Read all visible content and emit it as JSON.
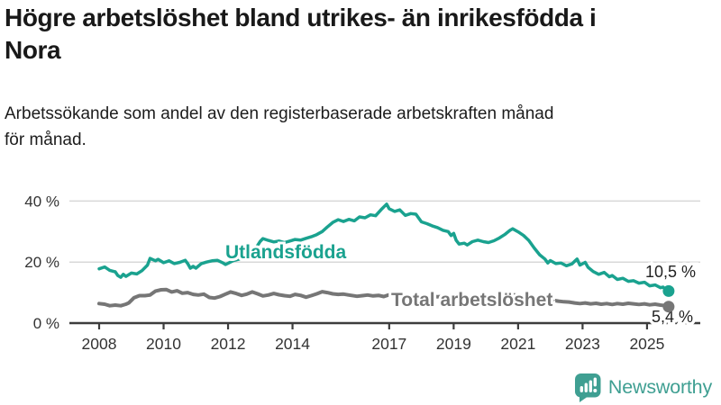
{
  "header": {
    "title_line1": "Högre arbetslöshet bland utrikes- än inrikesfödda i",
    "title_line2": "Nora",
    "subtitle_line1": "Arbetssökande som andel av den registerbaserade arbetskraften månad",
    "subtitle_line2": "för månad."
  },
  "footer": {
    "brand": "Newsworthy",
    "logo_icon": "bar-chart-speech-bubble-icon"
  },
  "colors": {
    "accent_teal": "#1aa28f",
    "series_gray": "#767676",
    "gridline": "#d8d8d8",
    "axis": "#3d3d3d",
    "axis_text": "#333333",
    "end_label_text": "#222222",
    "logo_teal": "#3f9f92",
    "title_text": "#191919"
  },
  "chart_data": {
    "type": "line",
    "title": "Högre arbetslöshet bland utrikes- än inrikesfödda i Nora",
    "subtitle": "Arbetssökande som andel av den registerbaserade arbetskraften månad för månad.",
    "xlabel": "",
    "ylabel": "",
    "grid": "horizontal",
    "legend_position": "inline-labels",
    "xlim": [
      2007.9,
      2025.85
    ],
    "ylim": [
      0,
      43
    ],
    "x_axis": {
      "ticks": [
        {
          "value": 2008,
          "label": "2008"
        },
        {
          "value": 2010,
          "label": "2010"
        },
        {
          "value": 2012,
          "label": "2012"
        },
        {
          "value": 2014,
          "label": "2014"
        },
        {
          "value": 2017,
          "label": "2017"
        },
        {
          "value": 2019,
          "label": "2019"
        },
        {
          "value": 2021,
          "label": "2021"
        },
        {
          "value": 2023,
          "label": "2023"
        },
        {
          "value": 2025,
          "label": "2025"
        }
      ]
    },
    "y_axis": {
      "ticks": [
        {
          "value": 0,
          "label": "0 %"
        },
        {
          "value": 20,
          "label": "20 %"
        },
        {
          "value": 40,
          "label": "40 %"
        }
      ]
    },
    "series": [
      {
        "id": "utlandsfodda",
        "name": "Utlandsfödda",
        "color": "#1aa28f",
        "end_label": "10,5 %",
        "end_value": 10.5,
        "points": [
          [
            2008.0,
            17.8
          ],
          [
            2008.17,
            18.4
          ],
          [
            2008.33,
            17.3
          ],
          [
            2008.5,
            16.8
          ],
          [
            2008.58,
            15.6
          ],
          [
            2008.67,
            15.0
          ],
          [
            2008.75,
            16.0
          ],
          [
            2008.83,
            15.3
          ],
          [
            2009.0,
            16.4
          ],
          [
            2009.17,
            16.1
          ],
          [
            2009.33,
            17.2
          ],
          [
            2009.5,
            19.0
          ],
          [
            2009.58,
            21.2
          ],
          [
            2009.75,
            20.4
          ],
          [
            2009.83,
            20.9
          ],
          [
            2010.0,
            19.8
          ],
          [
            2010.17,
            20.4
          ],
          [
            2010.33,
            19.5
          ],
          [
            2010.5,
            19.9
          ],
          [
            2010.67,
            20.6
          ],
          [
            2010.75,
            19.5
          ],
          [
            2010.83,
            18.0
          ],
          [
            2010.92,
            18.6
          ],
          [
            2011.0,
            18.0
          ],
          [
            2011.17,
            19.5
          ],
          [
            2011.33,
            20.0
          ],
          [
            2011.5,
            20.4
          ],
          [
            2011.67,
            20.6
          ],
          [
            2011.83,
            19.8
          ],
          [
            2011.92,
            19.2
          ],
          [
            2012.0,
            19.6
          ],
          [
            2012.17,
            20.5
          ],
          [
            2012.33,
            20.9
          ],
          [
            2012.5,
            21.3
          ],
          [
            2012.67,
            22.0
          ],
          [
            2012.83,
            24.0
          ],
          [
            2013.0,
            26.8
          ],
          [
            2013.08,
            27.7
          ],
          [
            2013.25,
            27.1
          ],
          [
            2013.42,
            26.6
          ],
          [
            2013.58,
            26.9
          ],
          [
            2013.75,
            26.4
          ],
          [
            2013.92,
            26.9
          ],
          [
            2014.08,
            27.4
          ],
          [
            2014.25,
            27.2
          ],
          [
            2014.42,
            27.8
          ],
          [
            2014.58,
            28.3
          ],
          [
            2014.75,
            29.0
          ],
          [
            2014.92,
            30.0
          ],
          [
            2015.08,
            31.5
          ],
          [
            2015.25,
            33.0
          ],
          [
            2015.42,
            33.9
          ],
          [
            2015.58,
            33.3
          ],
          [
            2015.75,
            34.0
          ],
          [
            2015.92,
            33.5
          ],
          [
            2016.08,
            34.8
          ],
          [
            2016.25,
            34.5
          ],
          [
            2016.42,
            35.5
          ],
          [
            2016.58,
            35.2
          ],
          [
            2016.75,
            37.2
          ],
          [
            2016.92,
            39.0
          ],
          [
            2017.0,
            37.5
          ],
          [
            2017.17,
            36.6
          ],
          [
            2017.33,
            37.1
          ],
          [
            2017.5,
            35.3
          ],
          [
            2017.67,
            35.9
          ],
          [
            2017.83,
            35.7
          ],
          [
            2018.0,
            33.2
          ],
          [
            2018.17,
            32.6
          ],
          [
            2018.33,
            31.9
          ],
          [
            2018.5,
            31.3
          ],
          [
            2018.67,
            30.4
          ],
          [
            2018.83,
            30.0
          ],
          [
            2018.92,
            28.7
          ],
          [
            2019.0,
            29.4
          ],
          [
            2019.08,
            27.1
          ],
          [
            2019.17,
            25.9
          ],
          [
            2019.33,
            26.2
          ],
          [
            2019.42,
            25.6
          ],
          [
            2019.58,
            26.7
          ],
          [
            2019.75,
            27.2
          ],
          [
            2019.92,
            26.7
          ],
          [
            2020.08,
            26.4
          ],
          [
            2020.25,
            27.0
          ],
          [
            2020.42,
            27.9
          ],
          [
            2020.58,
            29.0
          ],
          [
            2020.75,
            30.4
          ],
          [
            2020.83,
            30.9
          ],
          [
            2021.0,
            29.9
          ],
          [
            2021.17,
            28.7
          ],
          [
            2021.33,
            27.1
          ],
          [
            2021.5,
            24.6
          ],
          [
            2021.67,
            22.4
          ],
          [
            2021.83,
            21.0
          ],
          [
            2021.92,
            19.7
          ],
          [
            2022.0,
            20.5
          ],
          [
            2022.17,
            19.5
          ],
          [
            2022.33,
            19.7
          ],
          [
            2022.5,
            18.8
          ],
          [
            2022.67,
            19.4
          ],
          [
            2022.83,
            21.0
          ],
          [
            2022.92,
            19.0
          ],
          [
            2023.08,
            19.9
          ],
          [
            2023.17,
            18.3
          ],
          [
            2023.33,
            16.9
          ],
          [
            2023.5,
            16.0
          ],
          [
            2023.67,
            16.6
          ],
          [
            2023.83,
            15.2
          ],
          [
            2023.92,
            15.6
          ],
          [
            2024.08,
            14.3
          ],
          [
            2024.25,
            14.7
          ],
          [
            2024.42,
            13.7
          ],
          [
            2024.58,
            13.9
          ],
          [
            2024.75,
            13.1
          ],
          [
            2024.92,
            13.4
          ],
          [
            2025.08,
            12.2
          ],
          [
            2025.25,
            12.5
          ],
          [
            2025.42,
            11.6
          ],
          [
            2025.5,
            11.8
          ],
          [
            2025.58,
            10.9
          ],
          [
            2025.67,
            10.5
          ]
        ]
      },
      {
        "id": "total-arbetsloshet",
        "name": "Total arbetslöshet",
        "color": "#767676",
        "end_label": "5,4 %",
        "end_value": 5.4,
        "points": [
          [
            2008.0,
            6.4
          ],
          [
            2008.17,
            6.2
          ],
          [
            2008.33,
            5.7
          ],
          [
            2008.5,
            5.9
          ],
          [
            2008.67,
            5.7
          ],
          [
            2008.83,
            6.2
          ],
          [
            2008.92,
            6.6
          ],
          [
            2009.08,
            8.3
          ],
          [
            2009.25,
            9.0
          ],
          [
            2009.42,
            9.0
          ],
          [
            2009.58,
            9.2
          ],
          [
            2009.75,
            10.5
          ],
          [
            2009.92,
            10.9
          ],
          [
            2010.08,
            11.0
          ],
          [
            2010.25,
            10.2
          ],
          [
            2010.42,
            10.6
          ],
          [
            2010.58,
            9.8
          ],
          [
            2010.75,
            10.0
          ],
          [
            2010.92,
            9.4
          ],
          [
            2011.08,
            9.2
          ],
          [
            2011.25,
            9.5
          ],
          [
            2011.42,
            8.4
          ],
          [
            2011.58,
            8.2
          ],
          [
            2011.75,
            8.7
          ],
          [
            2011.92,
            9.5
          ],
          [
            2012.08,
            10.2
          ],
          [
            2012.25,
            9.7
          ],
          [
            2012.42,
            9.1
          ],
          [
            2012.58,
            9.5
          ],
          [
            2012.75,
            10.2
          ],
          [
            2012.92,
            9.6
          ],
          [
            2013.08,
            8.9
          ],
          [
            2013.25,
            9.2
          ],
          [
            2013.42,
            9.7
          ],
          [
            2013.58,
            9.3
          ],
          [
            2013.75,
            9.0
          ],
          [
            2013.92,
            8.8
          ],
          [
            2014.08,
            9.4
          ],
          [
            2014.25,
            9.1
          ],
          [
            2014.42,
            8.5
          ],
          [
            2014.58,
            9.0
          ],
          [
            2014.75,
            9.6
          ],
          [
            2014.92,
            10.3
          ],
          [
            2015.08,
            10.0
          ],
          [
            2015.25,
            9.6
          ],
          [
            2015.42,
            9.4
          ],
          [
            2015.58,
            9.5
          ],
          [
            2015.75,
            9.2
          ],
          [
            2016.0,
            8.8
          ],
          [
            2016.17,
            9.0
          ],
          [
            2016.33,
            9.2
          ],
          [
            2016.5,
            8.9
          ],
          [
            2016.67,
            9.1
          ],
          [
            2016.83,
            8.7
          ],
          [
            2017.0,
            9.3
          ],
          [
            2017.25,
            9.5
          ],
          [
            2017.5,
            9.1
          ],
          [
            2017.75,
            8.9
          ],
          [
            2018.0,
            8.7
          ],
          [
            2018.25,
            9.0
          ],
          [
            2018.5,
            8.6
          ],
          [
            2018.75,
            8.8
          ],
          [
            2019.0,
            8.5
          ],
          [
            2019.25,
            8.2
          ],
          [
            2019.5,
            8.4
          ],
          [
            2019.75,
            8.1
          ],
          [
            2020.0,
            8.3
          ],
          [
            2020.25,
            8.7
          ],
          [
            2020.5,
            9.2
          ],
          [
            2020.75,
            9.4
          ],
          [
            2021.0,
            9.1
          ],
          [
            2021.25,
            8.8
          ],
          [
            2021.5,
            8.3
          ],
          [
            2021.75,
            7.8
          ],
          [
            2022.0,
            7.6
          ],
          [
            2022.25,
            7.2
          ],
          [
            2022.42,
            7.0
          ],
          [
            2022.58,
            6.9
          ],
          [
            2022.75,
            6.6
          ],
          [
            2022.92,
            6.4
          ],
          [
            2023.08,
            6.6
          ],
          [
            2023.25,
            6.3
          ],
          [
            2023.42,
            6.5
          ],
          [
            2023.58,
            6.2
          ],
          [
            2023.75,
            6.4
          ],
          [
            2023.92,
            6.1
          ],
          [
            2024.08,
            6.4
          ],
          [
            2024.25,
            6.2
          ],
          [
            2024.42,
            6.5
          ],
          [
            2024.58,
            6.3
          ],
          [
            2024.75,
            6.1
          ],
          [
            2024.92,
            6.3
          ],
          [
            2025.08,
            6.0
          ],
          [
            2025.25,
            6.2
          ],
          [
            2025.42,
            5.9
          ],
          [
            2025.58,
            5.7
          ],
          [
            2025.67,
            5.4
          ]
        ]
      }
    ]
  }
}
